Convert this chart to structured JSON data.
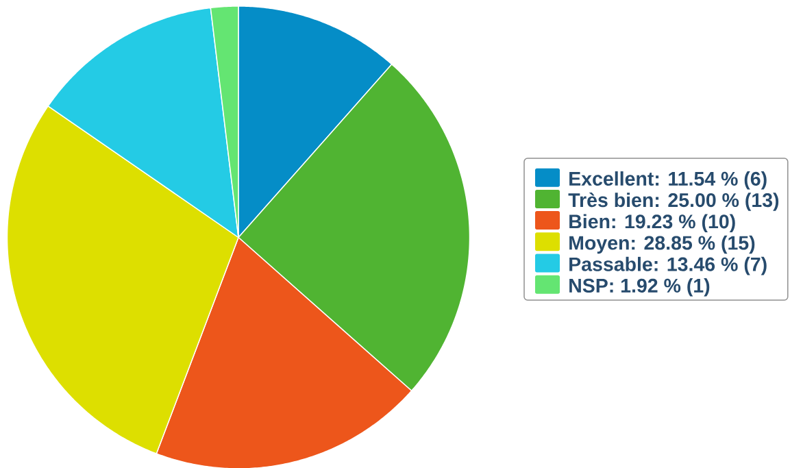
{
  "chart_data": {
    "type": "pie",
    "categories": [
      "Excellent: 11.54 % (6)",
      "Très bien: 25.00 % (13)",
      "Bien: 19.23 % (10)",
      "Moyen: 28.85 % (15)",
      "Passable: 13.46 % (7)",
      "NSP: 1.92 % (1)"
    ],
    "values": [
      6,
      13,
      10,
      15,
      7,
      1
    ],
    "colors": [
      "#058dc7",
      "#50b432",
      "#ed561b",
      "#dddf00",
      "#24cbe5",
      "#64e572"
    ],
    "legend": "right"
  }
}
